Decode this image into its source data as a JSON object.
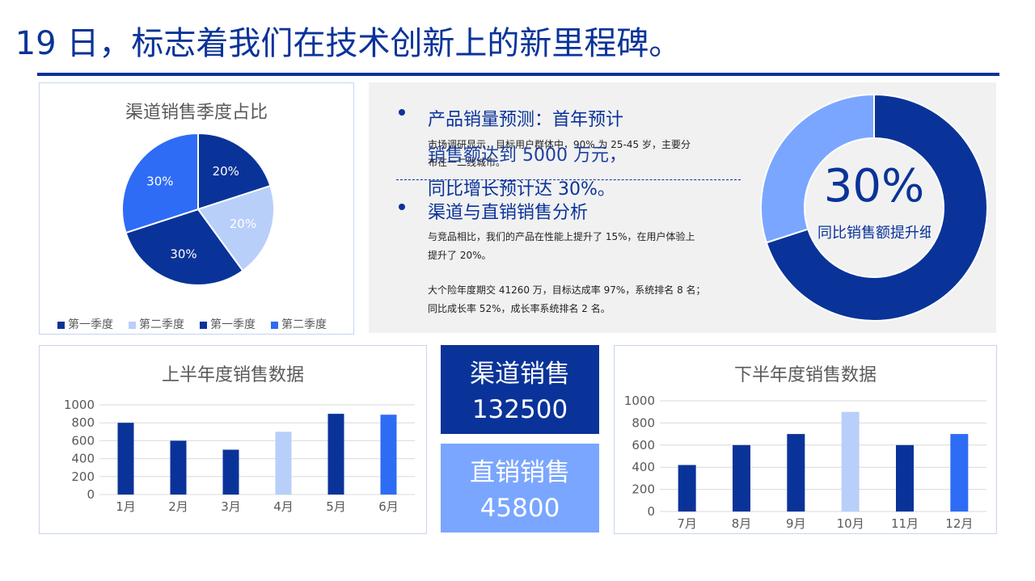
{
  "headline": "月 19 日，标志着我们在技术创新上的新里程碑。",
  "colors": {
    "dark": "#0a3399",
    "light": "#b8cffa",
    "mid": "#2e6cf6",
    "medium": "#7aa6ff"
  },
  "sections": {
    "forecast": {
      "title": "产品销量预测：首年预计",
      "overlay_line1": "销售额达到 5000 万元，",
      "overlay_line2": "同比增长预计达 30%。",
      "body_line1": "市场调研显示，目标用户群体中，90% 为 25-45 岁，主要分",
      "body_line2": "布在一二线城市。"
    },
    "channel": {
      "title": "渠道与直销销售分析",
      "body_line1": "与竞品相比，我们的产品在性能上提升了 15%，在用户体验上",
      "body_line2": "提升了 20%。",
      "body_line3": "大个险年度期交 41260 万，目标达成率 97%，系统排名 8 名；",
      "body_line4": "同比成长率 52%，成长率系统排名 2 名。"
    }
  },
  "donut": {
    "percent_label": "30%",
    "caption": "同比销售额提升细",
    "value": 30
  },
  "kpis": {
    "channel": {
      "label": "渠道销售",
      "value": "132500"
    },
    "direct": {
      "label": "直销销售",
      "value": "45800"
    }
  },
  "chart_data": [
    {
      "type": "pie",
      "title": "渠道销售季度占比",
      "labels": [
        "第一季度",
        "第二季度",
        "第一季度",
        "第二季度"
      ],
      "values": [
        20,
        20,
        30,
        30
      ],
      "value_labels": [
        "20%",
        "20%",
        "30%",
        "30%"
      ],
      "colors": [
        "#0a3399",
        "#b8cffa",
        "#0a3399",
        "#2e6cf6"
      ],
      "legend_position": "bottom"
    },
    {
      "type": "bar",
      "title": "上半年度销售数据",
      "categories": [
        "1月",
        "2月",
        "3月",
        "4月",
        "5月",
        "6月"
      ],
      "values": [
        800,
        600,
        500,
        700,
        900,
        890
      ],
      "colors": [
        "#0a3399",
        "#0a3399",
        "#0a3399",
        "#b8cffa",
        "#0a3399",
        "#2e6cf6"
      ],
      "ylim": [
        0,
        1000
      ],
      "yticks": [
        "0",
        "200",
        "400",
        "600",
        "800",
        "1000"
      ],
      "grid": true
    },
    {
      "type": "bar",
      "title": "下半年度销售数据",
      "categories": [
        "7月",
        "8月",
        "9月",
        "10月",
        "11月",
        "12月"
      ],
      "values": [
        420,
        600,
        700,
        900,
        600,
        700
      ],
      "colors": [
        "#0a3399",
        "#0a3399",
        "#0a3399",
        "#b8cffa",
        "#0a3399",
        "#2e6cf6"
      ],
      "ylim": [
        0,
        1000
      ],
      "yticks": [
        "0",
        "200",
        "400",
        "600",
        "800",
        "1000"
      ],
      "grid": true
    }
  ]
}
